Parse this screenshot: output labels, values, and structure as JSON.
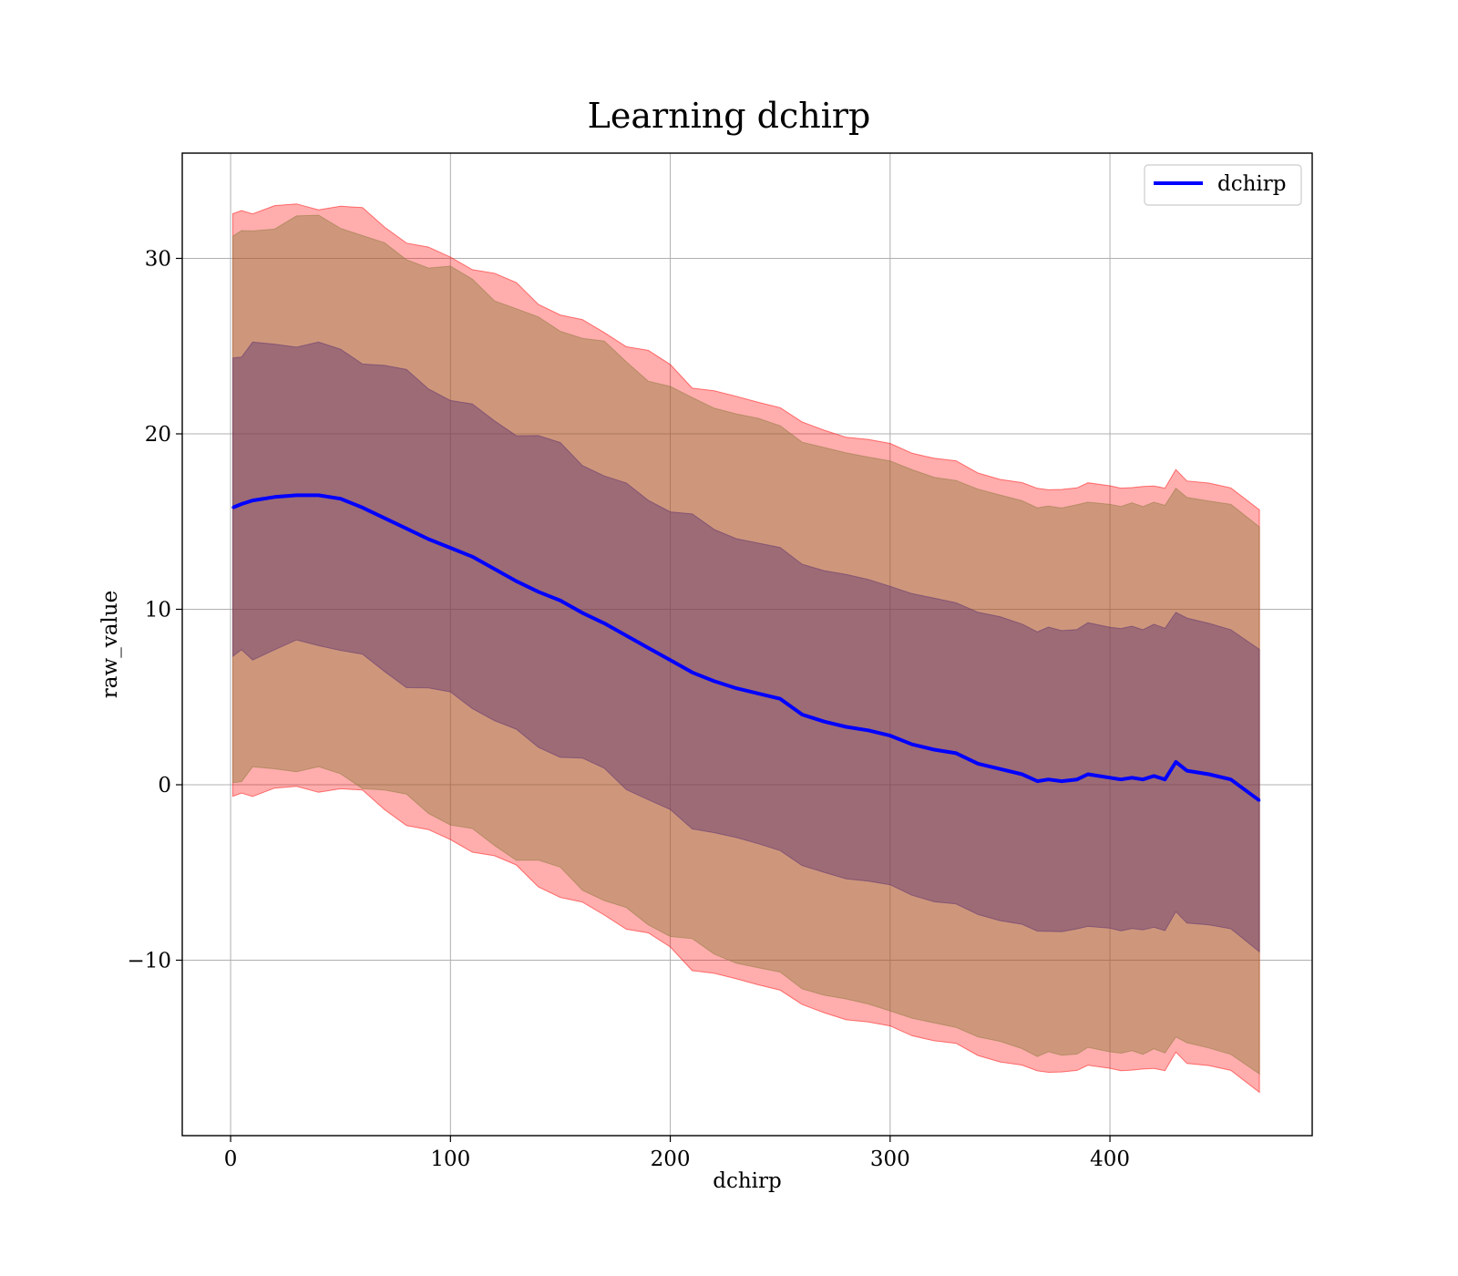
{
  "chart_data": {
    "type": "line",
    "title": "Learning dchirp",
    "xlabel": "dchirp",
    "ylabel": "raw_value",
    "xlim": [
      -22,
      492
    ],
    "ylim": [
      -20.0,
      36.0
    ],
    "xticks": [
      0,
      100,
      200,
      300,
      400
    ],
    "yticks": [
      -10,
      0,
      10,
      20,
      30
    ],
    "xtick_labels": [
      "0",
      "100",
      "200",
      "300",
      "400"
    ],
    "ytick_labels": [
      "−10",
      "0",
      "10",
      "20",
      "30"
    ],
    "grid": true,
    "legend_position": "top-right",
    "series": [
      {
        "name": "dchirp",
        "color": "#0000ff",
        "x": [
          1,
          5,
          10,
          20,
          30,
          40,
          50,
          60,
          70,
          80,
          90,
          100,
          110,
          120,
          130,
          140,
          150,
          160,
          170,
          180,
          190,
          200,
          210,
          220,
          230,
          240,
          250,
          260,
          270,
          280,
          290,
          300,
          310,
          320,
          330,
          340,
          350,
          360,
          367,
          372,
          378,
          385,
          390,
          400,
          405,
          410,
          415,
          420,
          425,
          430,
          435,
          445,
          455,
          468
        ],
        "y": [
          15.8,
          16.0,
          16.2,
          16.4,
          16.5,
          16.5,
          16.3,
          15.8,
          15.2,
          14.6,
          14.0,
          13.5,
          13.0,
          12.3,
          11.6,
          11.0,
          10.5,
          9.8,
          9.2,
          8.5,
          7.8,
          7.1,
          6.4,
          5.9,
          5.5,
          5.2,
          4.9,
          4.0,
          3.6,
          3.3,
          3.1,
          2.8,
          2.3,
          2.0,
          1.8,
          1.2,
          0.9,
          0.6,
          0.2,
          0.3,
          0.2,
          0.3,
          0.6,
          0.4,
          0.3,
          0.4,
          0.3,
          0.5,
          0.3,
          1.3,
          0.8,
          0.6,
          0.3,
          -0.9
        ]
      }
    ],
    "bands": [
      {
        "name": "outer",
        "color": "#ff0000",
        "opacity": 0.32,
        "offset": 16.6
      },
      {
        "name": "mid",
        "color": "#8b7a3a",
        "opacity": 0.42,
        "offset": 15.6
      },
      {
        "name": "inner",
        "color": "#5b2f6d",
        "opacity": 0.42,
        "offset": 8.6
      }
    ]
  }
}
